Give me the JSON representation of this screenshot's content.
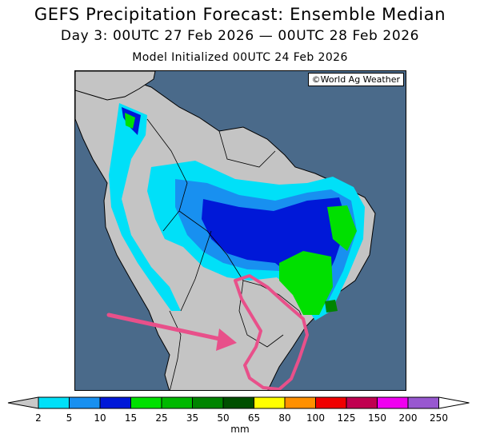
{
  "title": {
    "line1": "GEFS Precipitation Forecast: Ensemble Median",
    "line2": "Day 3: 00UTC 27 Feb 2026 — 00UTC 28 Feb 2026",
    "line3": "Model Initialized 00UTC 24 Feb 2026"
  },
  "map": {
    "credit": "©World Ag Weather",
    "ocean_color": "#4a6a8a",
    "land_color": "#c4c4c4",
    "highlight_color": "#e8508a"
  },
  "colorbar": {
    "units": "mm",
    "ticks": [
      "2",
      "5",
      "10",
      "15",
      "25",
      "35",
      "50",
      "65",
      "80",
      "100",
      "125",
      "150",
      "200",
      "250"
    ],
    "colors": [
      "#00e0f8",
      "#1890f0",
      "#0018d8",
      "#00e000",
      "#00b800",
      "#008400",
      "#005000",
      "#ffff00",
      "#ff9000",
      "#f00000",
      "#c00050",
      "#f000f0",
      "#9858d0"
    ],
    "low_arrow_color": "#c8c8c8",
    "high_arrow_color": "#ffffff"
  }
}
